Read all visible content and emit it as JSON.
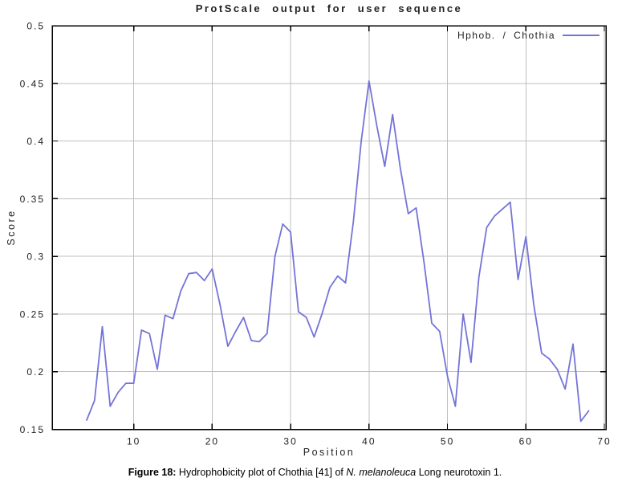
{
  "chart_data": {
    "type": "line",
    "title": "ProtScale output for user sequence",
    "xlabel": "Position",
    "ylabel": "Score",
    "legend": "Hphob. / Chothia",
    "legend_position": "top-right",
    "grid": true,
    "xlim": [
      -0.4,
      70.2
    ],
    "ylim": [
      0.15,
      0.5
    ],
    "xticks": [
      10,
      20,
      30,
      40,
      50,
      60,
      70
    ],
    "yticks": [
      0.15,
      0.2,
      0.25,
      0.3,
      0.35,
      0.4,
      0.45,
      0.5
    ],
    "line_color": "#7474d8",
    "grid_color": "#bfbfbf",
    "frame_color": "#000000",
    "series": [
      {
        "name": "Hphob. / Chothia",
        "x": [
          4,
          5,
          6,
          7,
          8,
          9,
          10,
          11,
          12,
          13,
          14,
          15,
          16,
          17,
          18,
          19,
          20,
          21,
          22,
          23,
          24,
          25,
          26,
          27,
          28,
          29,
          30,
          31,
          32,
          33,
          34,
          35,
          36,
          37,
          38,
          39,
          40,
          41,
          42,
          43,
          44,
          45,
          46,
          47,
          48,
          49,
          50,
          51,
          52,
          53,
          54,
          55,
          56,
          57,
          58,
          59,
          60,
          61,
          62,
          63,
          64,
          65,
          66,
          67,
          68
        ],
        "values": [
          0.158,
          0.175,
          0.239,
          0.17,
          0.182,
          0.19,
          0.19,
          0.236,
          0.233,
          0.202,
          0.249,
          0.246,
          0.27,
          0.285,
          0.286,
          0.279,
          0.289,
          0.258,
          0.222,
          0.235,
          0.247,
          0.227,
          0.226,
          0.233,
          0.3,
          0.328,
          0.321,
          0.252,
          0.247,
          0.23,
          0.25,
          0.273,
          0.283,
          0.277,
          0.33,
          0.4,
          0.452,
          0.413,
          0.378,
          0.423,
          0.376,
          0.337,
          0.342,
          0.295,
          0.242,
          0.235,
          0.196,
          0.17,
          0.25,
          0.208,
          0.282,
          0.325,
          0.335,
          0.341,
          0.347,
          0.28,
          0.317,
          0.258,
          0.216,
          0.211,
          0.202,
          0.185,
          0.224,
          0.157,
          0.166
        ]
      }
    ]
  },
  "caption": {
    "bold": "Figure 18:",
    "text_before_italic": " Hydrophobicity plot of Chothia [41] of ",
    "italic": "N. melanoleuca",
    "text_after_italic": " Long neurotoxin 1."
  }
}
